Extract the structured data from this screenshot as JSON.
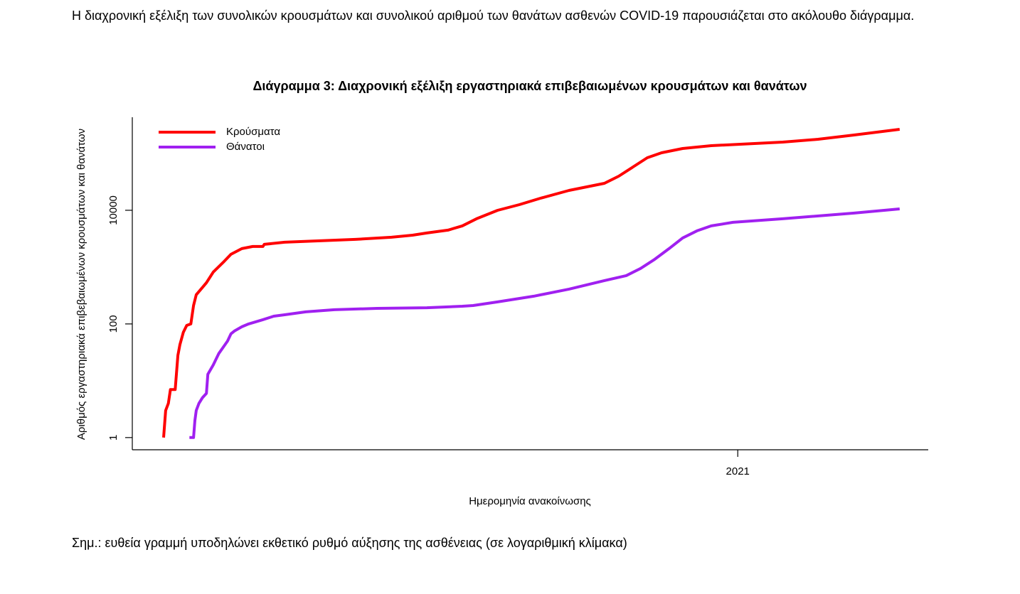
{
  "intro": "Η διαχρονική εξέλιξη των συνολικών κρουσμάτων και συνολικού αριθμού των θανάτων ασθενών COVID-19 παρουσιάζεται στο ακόλουθο διάγραμμα.",
  "chart_data": {
    "type": "line",
    "title": "Διάγραμμα 3: Διαχρονική εξέλιξη εργαστηριακά επιβεβαιωμένων κρουσμάτων και θανάτων",
    "xlabel": "Ημερομηνία ανακοίνωσης",
    "ylabel": "Αριθμός εργαστηριακά επιβεβαιωμένων κρουσμάτων και θανάτων",
    "log_y": true,
    "legend": "topleft",
    "xlim": [
      2020.11,
      2021.28
    ],
    "xticks": [
      2021
    ],
    "ylim": [
      0.61,
      434000
    ],
    "yticks": [
      1,
      100,
      10000
    ],
    "series": [
      {
        "name": "Κρούσματα",
        "color": "#ff0000",
        "x": [
          2020.156,
          2020.159,
          2020.163,
          2020.166,
          2020.173,
          2020.177,
          2020.18,
          2020.185,
          2020.19,
          2020.196,
          2020.2,
          2020.204,
          2020.211,
          2020.219,
          2020.229,
          2020.245,
          2020.255,
          2020.271,
          2020.287,
          2020.302,
          2020.304,
          2020.334,
          2020.386,
          2020.438,
          2020.491,
          2020.522,
          2020.543,
          2020.574,
          2020.595,
          2020.616,
          2020.647,
          2020.679,
          2020.71,
          2020.752,
          2020.804,
          2020.825,
          2020.846,
          2020.867,
          2020.888,
          2020.919,
          2020.961,
          2021.066,
          2021.118,
          2021.171,
          2021.238
        ],
        "values": [
          1,
          3,
          4,
          7,
          7,
          28,
          43,
          71,
          94,
          100,
          211,
          326,
          410,
          531,
          817,
          1259,
          1679,
          2113,
          2305,
          2305,
          2512,
          2738,
          2900,
          3072,
          3350,
          3650,
          3981,
          4467,
          5309,
          7079,
          10000,
          12589,
          16312,
          22387,
          29854,
          39811,
          57876,
          84140,
          102900,
          122400,
          137300,
          158500,
          177800,
          211300,
          266100
        ]
      },
      {
        "name": "Θάνατοι",
        "color": "#a020f0",
        "x": [
          2020.194,
          2020.2,
          2020.202,
          2020.204,
          2020.208,
          2020.213,
          2020.219,
          2020.221,
          2020.229,
          2020.237,
          2020.245,
          2020.25,
          2020.255,
          2020.26,
          2020.271,
          2020.281,
          2020.302,
          2020.318,
          2020.334,
          2020.365,
          2020.407,
          2020.47,
          2020.543,
          2020.595,
          2020.611,
          2020.647,
          2020.7,
          2020.752,
          2020.804,
          2020.836,
          2020.857,
          2020.878,
          2020.899,
          2020.919,
          2020.94,
          2020.961,
          2020.993,
          2021.066,
          2021.171,
          2021.238
        ],
        "values": [
          1,
          1,
          2,
          3,
          4,
          5,
          6,
          13,
          19,
          30,
          41,
          50,
          67,
          75,
          89,
          100,
          119,
          137,
          145,
          163,
          178,
          188,
          193,
          205,
          211,
          244,
          307,
          410,
          579,
          708,
          944,
          1373,
          2113,
          3254,
          4340,
          5309,
          6131,
          7079,
          8913,
          10593
        ]
      }
    ]
  },
  "note": "Σημ.: ευθεία γραμμή υποδηλώνει εκθετικό ρυθμό αύξησης της ασθένειας (σε λογαριθμική κλίμακα)"
}
